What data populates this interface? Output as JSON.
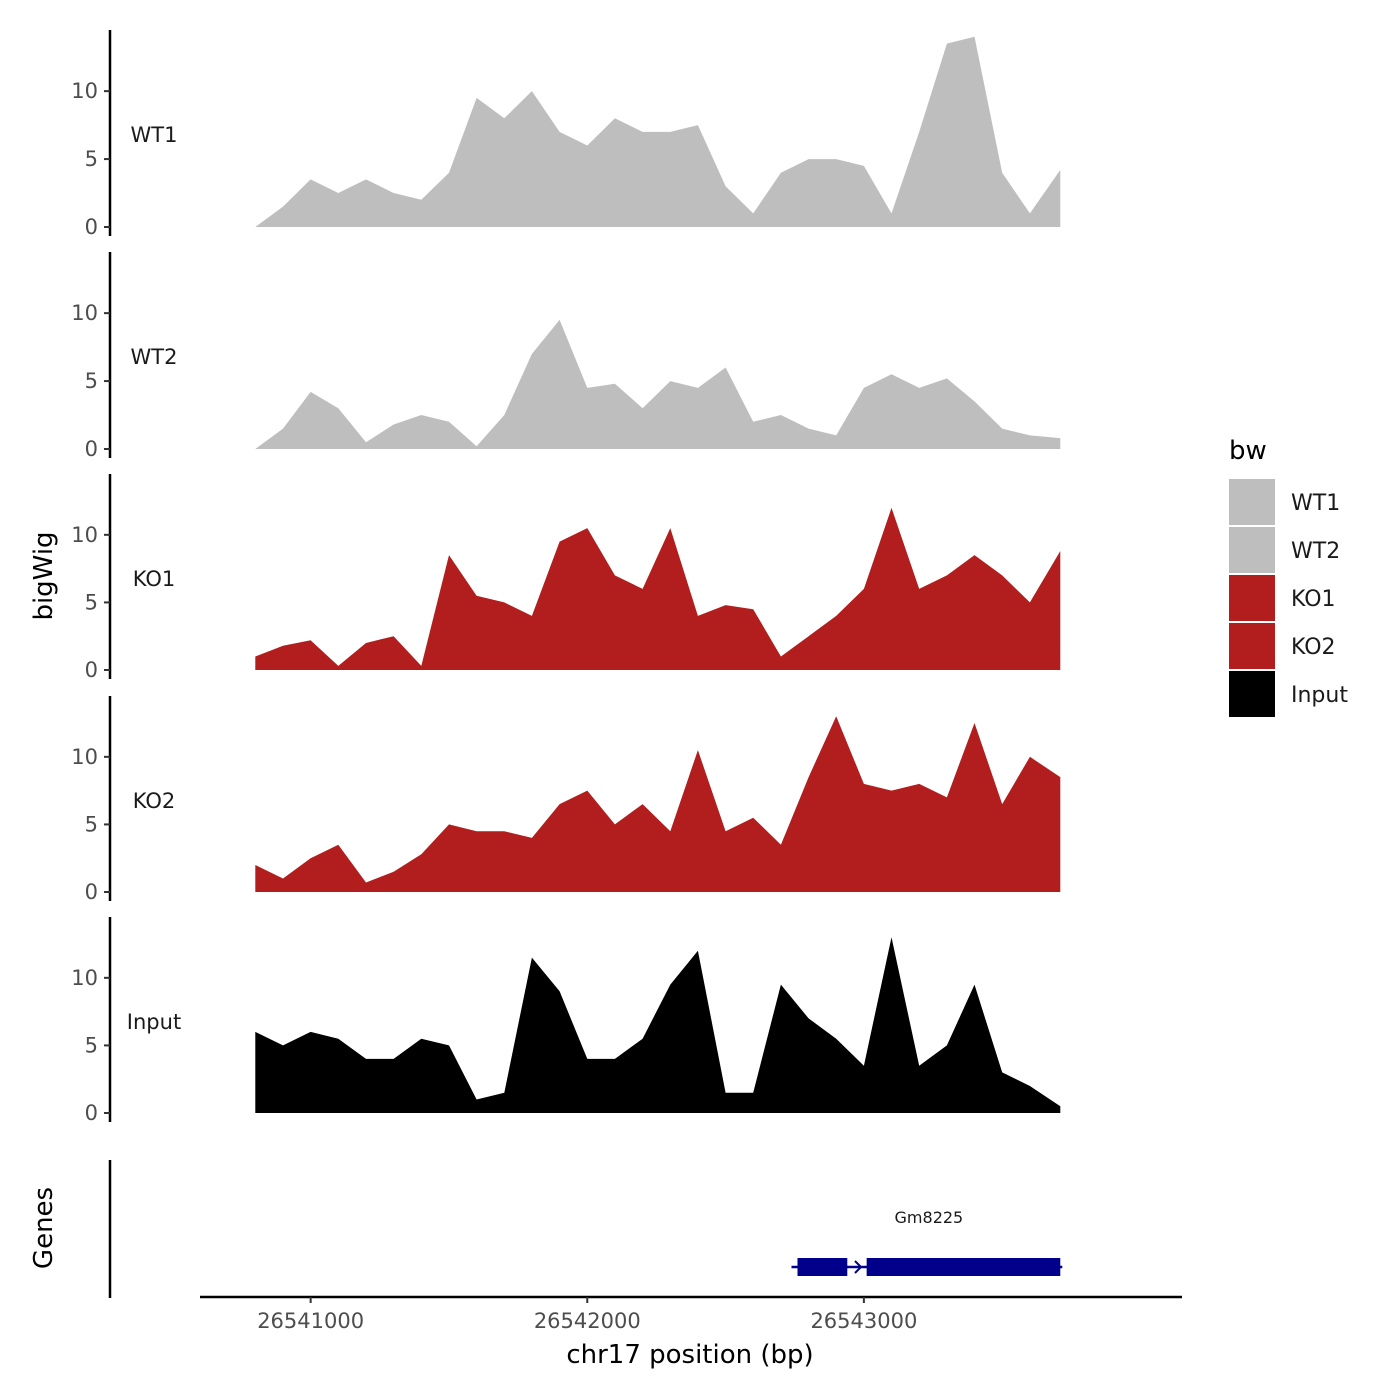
{
  "chart_data": {
    "type": "area",
    "title": "",
    "xlabel": "chr17 position (bp)",
    "ylabel": "bigWig",
    "xlim": [
      26540600,
      26544150
    ],
    "ylim": [
      0,
      14.5
    ],
    "x_ticks": [
      26541000,
      26542000,
      26543000
    ],
    "x_tick_labels": [
      "26541000",
      "26542000",
      "26543000"
    ],
    "y_ticks": [
      0,
      5,
      10
    ],
    "y_tick_labels": [
      "0",
      "5",
      "10"
    ],
    "grid": false,
    "legend": {
      "title": "bw",
      "position": "right",
      "entries": [
        {
          "label": "WT1",
          "color": "#bebebe"
        },
        {
          "label": "WT2",
          "color": "#bebebe"
        },
        {
          "label": "KO1",
          "color": "#b21e1e"
        },
        {
          "label": "KO2",
          "color": "#b21e1e"
        },
        {
          "label": "Input",
          "color": "#000000"
        }
      ]
    },
    "x": [
      26540800,
      26540900,
      26541000,
      26541100,
      26541200,
      26541300,
      26541400,
      26541500,
      26541600,
      26541700,
      26541800,
      26541900,
      26542000,
      26542100,
      26542200,
      26542300,
      26542400,
      26542500,
      26542600,
      26542700,
      26542800,
      26542900,
      26543000,
      26543100,
      26543200,
      26543300,
      26543400,
      26543500,
      26543600,
      26543710
    ],
    "series": [
      {
        "name": "WT1",
        "color": "#bebebe",
        "values": [
          0,
          1.5,
          3.5,
          2.5,
          3.5,
          2.5,
          2,
          4,
          9.5,
          8,
          10,
          7,
          6,
          8,
          7,
          7,
          7.5,
          3,
          1,
          4,
          5,
          5,
          4.5,
          1,
          7,
          13.5,
          14,
          4,
          1,
          4.2
        ]
      },
      {
        "name": "WT2",
        "color": "#bebebe",
        "values": [
          0,
          1.5,
          4.2,
          3,
          0.5,
          1.8,
          2.5,
          2,
          0.2,
          2.5,
          7,
          9.5,
          4.5,
          4.8,
          3,
          5,
          4.5,
          6,
          2,
          2.5,
          1.5,
          1,
          4.5,
          5.5,
          4.5,
          5.2,
          3.5,
          1.5,
          1,
          0.8
        ]
      },
      {
        "name": "KO1",
        "color": "#b21e1e",
        "values": [
          1,
          1.8,
          2.2,
          0.3,
          2,
          2.5,
          0.3,
          8.5,
          5.5,
          5,
          4,
          9.5,
          10.5,
          7,
          6,
          10.5,
          4,
          4.8,
          4.5,
          1,
          2.5,
          4,
          6,
          12,
          6,
          7,
          8.5,
          7,
          5,
          8.8
        ]
      },
      {
        "name": "KO2",
        "color": "#b21e1e",
        "values": [
          2,
          1,
          2.5,
          3.5,
          0.7,
          1.5,
          2.8,
          5,
          4.5,
          4.5,
          4,
          6.5,
          7.5,
          5,
          6.5,
          4.5,
          10.5,
          4.5,
          5.5,
          3.5,
          8.5,
          13,
          8,
          7.5,
          8,
          7,
          12.5,
          6.5,
          10,
          8.5
        ]
      },
      {
        "name": "Input",
        "color": "#000000",
        "values": [
          6,
          5,
          6,
          5.5,
          4,
          4,
          5.5,
          5,
          1,
          1.5,
          11.5,
          9,
          4,
          4,
          5.5,
          9.5,
          12,
          1.5,
          1.5,
          9.5,
          7,
          5.5,
          3.5,
          13,
          3.5,
          5,
          9.5,
          3,
          2,
          0.5
        ]
      }
    ],
    "genes_track": {
      "label": "Genes",
      "genes": [
        {
          "name": "Gm8225",
          "start": 26542760,
          "end": 26543710,
          "strand": "+",
          "exons": [
            [
              26542760,
              26542940
            ],
            [
              26543010,
              26543710
            ]
          ]
        }
      ]
    }
  }
}
